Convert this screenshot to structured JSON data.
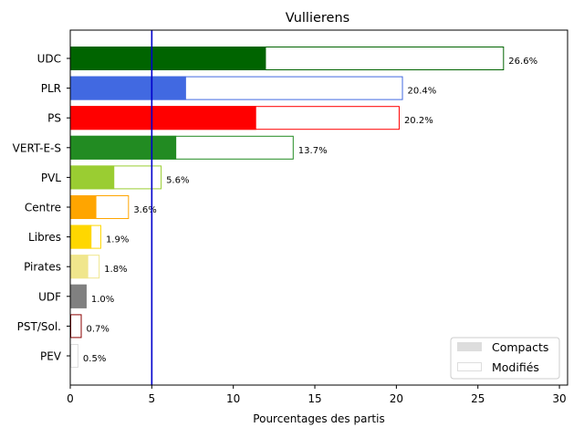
{
  "chart_data": {
    "type": "bar",
    "orientation": "horizontal",
    "title": "Vullierens",
    "xlabel": "Pourcentages des partis",
    "ylabel": "",
    "xlim": [
      0,
      30.5
    ],
    "xticks": [
      0,
      5,
      10,
      15,
      20,
      25,
      30
    ],
    "grid": false,
    "legend_position": "lower-right",
    "reference_line": {
      "x": 5,
      "color": "#0000cc"
    },
    "categories": [
      "UDC",
      "PLR",
      "PS",
      "VERT-E-S",
      "PVL",
      "Centre",
      "Libres",
      "Pirates",
      "UDF",
      "PST/Sol.",
      "PEV"
    ],
    "colors": [
      "#006400",
      "#4169e1",
      "#ff0000",
      "#228b22",
      "#9acd32",
      "#ffa500",
      "#ffd700",
      "#f0e68c",
      "#808080",
      "#8b0000",
      "#dddddd"
    ],
    "series": [
      {
        "name": "Compacts",
        "values": [
          12.0,
          7.1,
          11.4,
          6.5,
          2.7,
          1.6,
          1.3,
          1.1,
          1.0,
          0.0,
          0.0
        ]
      },
      {
        "name": "Modifiés",
        "values": [
          26.6,
          20.4,
          20.2,
          13.7,
          5.6,
          3.6,
          1.9,
          1.8,
          1.0,
          0.7,
          0.5
        ]
      }
    ],
    "data_labels": [
      "26.6%",
      "20.4%",
      "20.2%",
      "13.7%",
      "5.6%",
      "3.6%",
      "1.9%",
      "1.8%",
      "1.0%",
      "0.7%",
      "0.5%"
    ],
    "legend": [
      {
        "label": "Compacts",
        "color": "#dddddd",
        "style": "filled"
      },
      {
        "label": "Modifiés",
        "color": "#dddddd",
        "style": "outline"
      }
    ]
  }
}
